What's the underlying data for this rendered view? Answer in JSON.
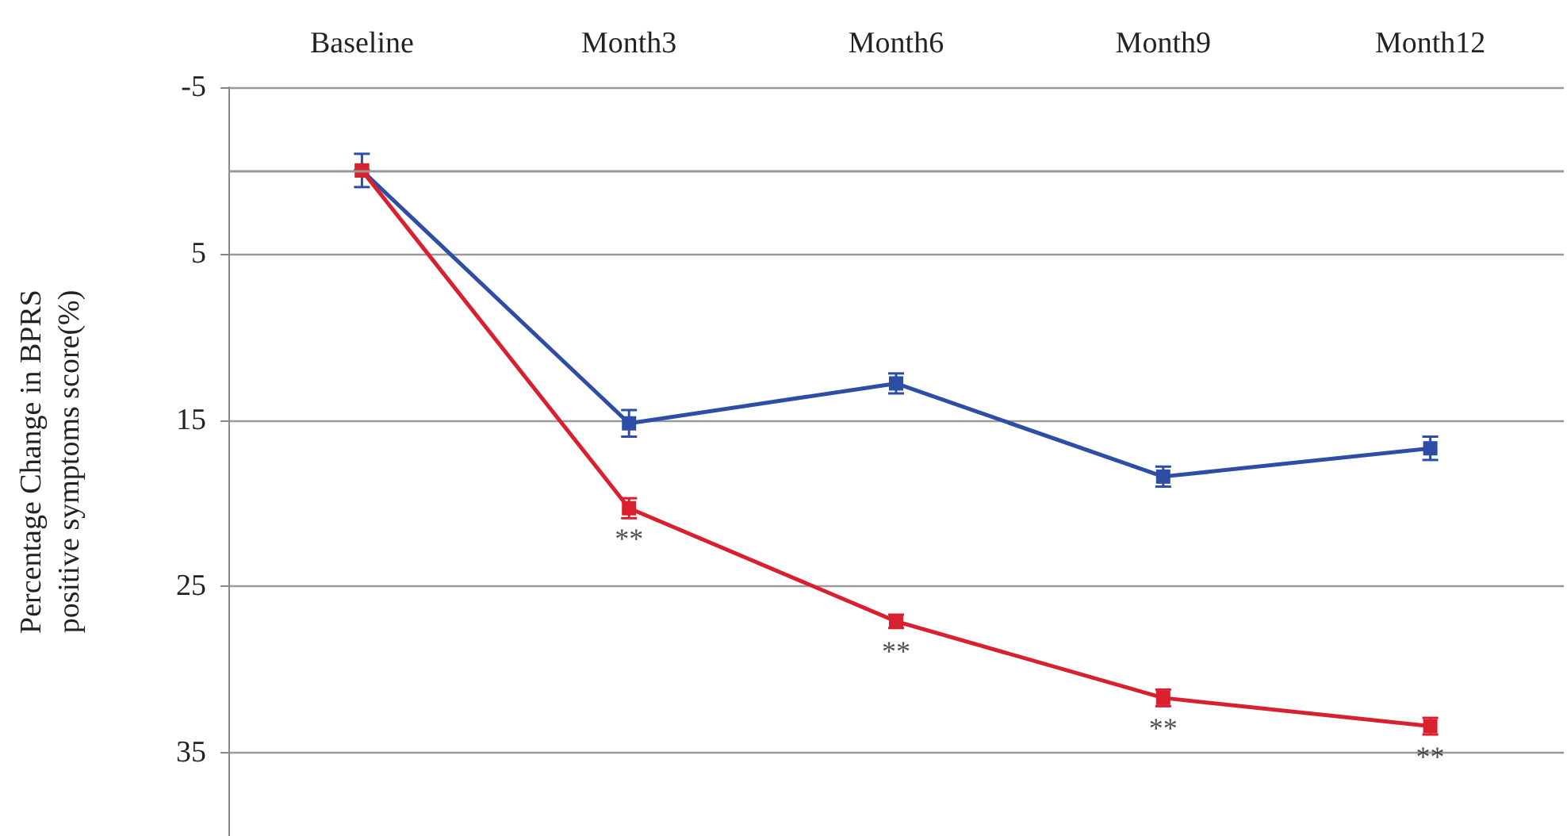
{
  "chart_data": {
    "type": "line",
    "ylabel": "Percentage Change in BPRS\npositive symptoms score(%)",
    "categories": [
      "Baseline",
      "Month3",
      "Month6",
      "Month9",
      "Month12"
    ],
    "series": [
      {
        "color": "#2e4ea6",
        "values": [
          0,
          15.2,
          12.8,
          18.4,
          16.7
        ],
        "errors": [
          1,
          0.8,
          0.6,
          0.6,
          0.7
        ]
      },
      {
        "color": "#d9202e",
        "values": [
          0,
          20.3,
          27.1,
          31.7,
          33.4
        ],
        "errors": [
          null,
          0.6,
          0.4,
          0.5,
          0.5
        ]
      }
    ],
    "ylim": [
      40,
      -5
    ],
    "yticks": [
      -5,
      5,
      15,
      25,
      35
    ],
    "grid": "y",
    "marker": "square",
    "line_style": "solid",
    "ref_lines": [
      {
        "axis": "y",
        "value": 0,
        "color": "#999999"
      }
    ],
    "annotations": [
      {
        "text": "**",
        "x": "Month3",
        "y": 20.3
      },
      {
        "text": "**",
        "x": "Month6",
        "y": 27.1
      },
      {
        "text": "**",
        "x": "Month9",
        "y": 31.7
      },
      {
        "text": "**",
        "x": "Month12",
        "y": 33.4
      }
    ]
  }
}
